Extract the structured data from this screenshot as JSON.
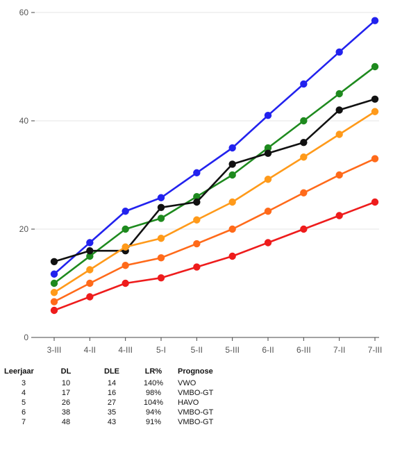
{
  "chart_data": {
    "type": "line",
    "categories": [
      "3-III",
      "4-II",
      "4-III",
      "5-I",
      "5-II",
      "5-III",
      "6-II",
      "6-III",
      "7-II",
      "7-III"
    ],
    "ylim": [
      0,
      60
    ],
    "yticks": [
      0,
      20,
      40,
      60
    ],
    "grid": true,
    "legend": "none",
    "series": [
      {
        "color": "#2222ee",
        "values": [
          11.7,
          17.5,
          23.3,
          25.8,
          30.4,
          35,
          41,
          46.8,
          52.7,
          58.5
        ]
      },
      {
        "color": "#1e8a1e",
        "values": [
          10,
          15,
          20,
          22,
          26,
          30,
          35,
          40,
          45,
          50
        ]
      },
      {
        "color": "#111111",
        "values": [
          14,
          16,
          16,
          24,
          25,
          32,
          34,
          36,
          42,
          44
        ]
      },
      {
        "color": "#ff9a1a",
        "values": [
          8.3,
          12.5,
          16.7,
          18.3,
          21.7,
          25,
          29.2,
          33.3,
          37.5,
          41.7
        ]
      },
      {
        "color": "#ff6a1a",
        "values": [
          6.6,
          10,
          13.3,
          14.7,
          17.3,
          20,
          23.3,
          26.7,
          30,
          33
        ]
      },
      {
        "color": "#ee1c1c",
        "values": [
          5,
          7.5,
          10,
          11,
          13,
          15,
          17.5,
          20,
          22.5,
          25
        ]
      }
    ]
  },
  "table": {
    "headers": [
      "Leerjaar",
      "DL",
      "DLE",
      "LR%",
      "Prognose"
    ],
    "rows": [
      [
        "3",
        "10",
        "14",
        "140%",
        "VWO"
      ],
      [
        "4",
        "17",
        "16",
        "98%",
        "VMBO-GT"
      ],
      [
        "5",
        "26",
        "27",
        "104%",
        "HAVO"
      ],
      [
        "6",
        "38",
        "35",
        "94%",
        "VMBO-GT"
      ],
      [
        "7",
        "48",
        "43",
        "91%",
        "VMBO-GT"
      ]
    ]
  }
}
